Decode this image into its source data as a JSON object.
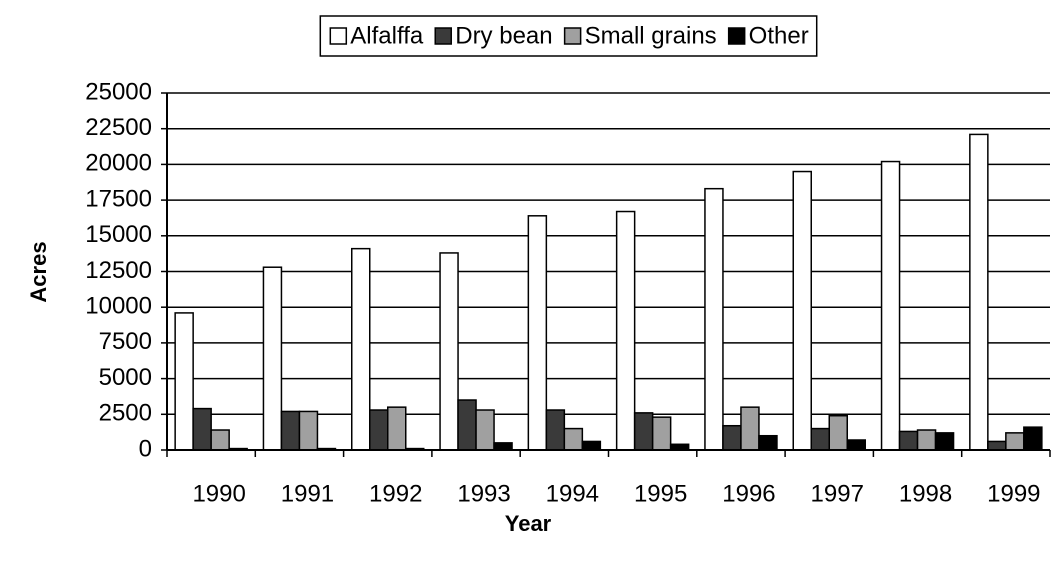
{
  "chart_data": {
    "type": "bar",
    "x_label": "Year",
    "y_label": "Acres",
    "categories": [
      "1990",
      "1991",
      "1992",
      "1993",
      "1994",
      "1995",
      "1996",
      "1997",
      "1998",
      "1999"
    ],
    "series": [
      {
        "name": "Alfalffa",
        "color": "#ffffff",
        "values": [
          9600,
          12800,
          14100,
          13800,
          16400,
          16700,
          18300,
          19500,
          20200,
          22100
        ]
      },
      {
        "name": "Dry bean",
        "color": "#3a3a3a",
        "values": [
          2900,
          2700,
          2800,
          3500,
          2800,
          2600,
          1700,
          1500,
          1300,
          600
        ]
      },
      {
        "name": "Small grains",
        "color": "#a0a0a0",
        "values": [
          1400,
          2700,
          3000,
          2800,
          1500,
          2300,
          3000,
          2400,
          1400,
          1200
        ]
      },
      {
        "name": "Other",
        "color": "#000000",
        "values": [
          100,
          100,
          100,
          500,
          600,
          400,
          1000,
          700,
          1200,
          1600
        ]
      }
    ],
    "ylim": [
      0,
      25000
    ],
    "yticks": [
      0,
      2500,
      5000,
      7500,
      10000,
      12500,
      15000,
      17500,
      20000,
      22500,
      25000
    ],
    "grid": true,
    "legend": "top"
  }
}
